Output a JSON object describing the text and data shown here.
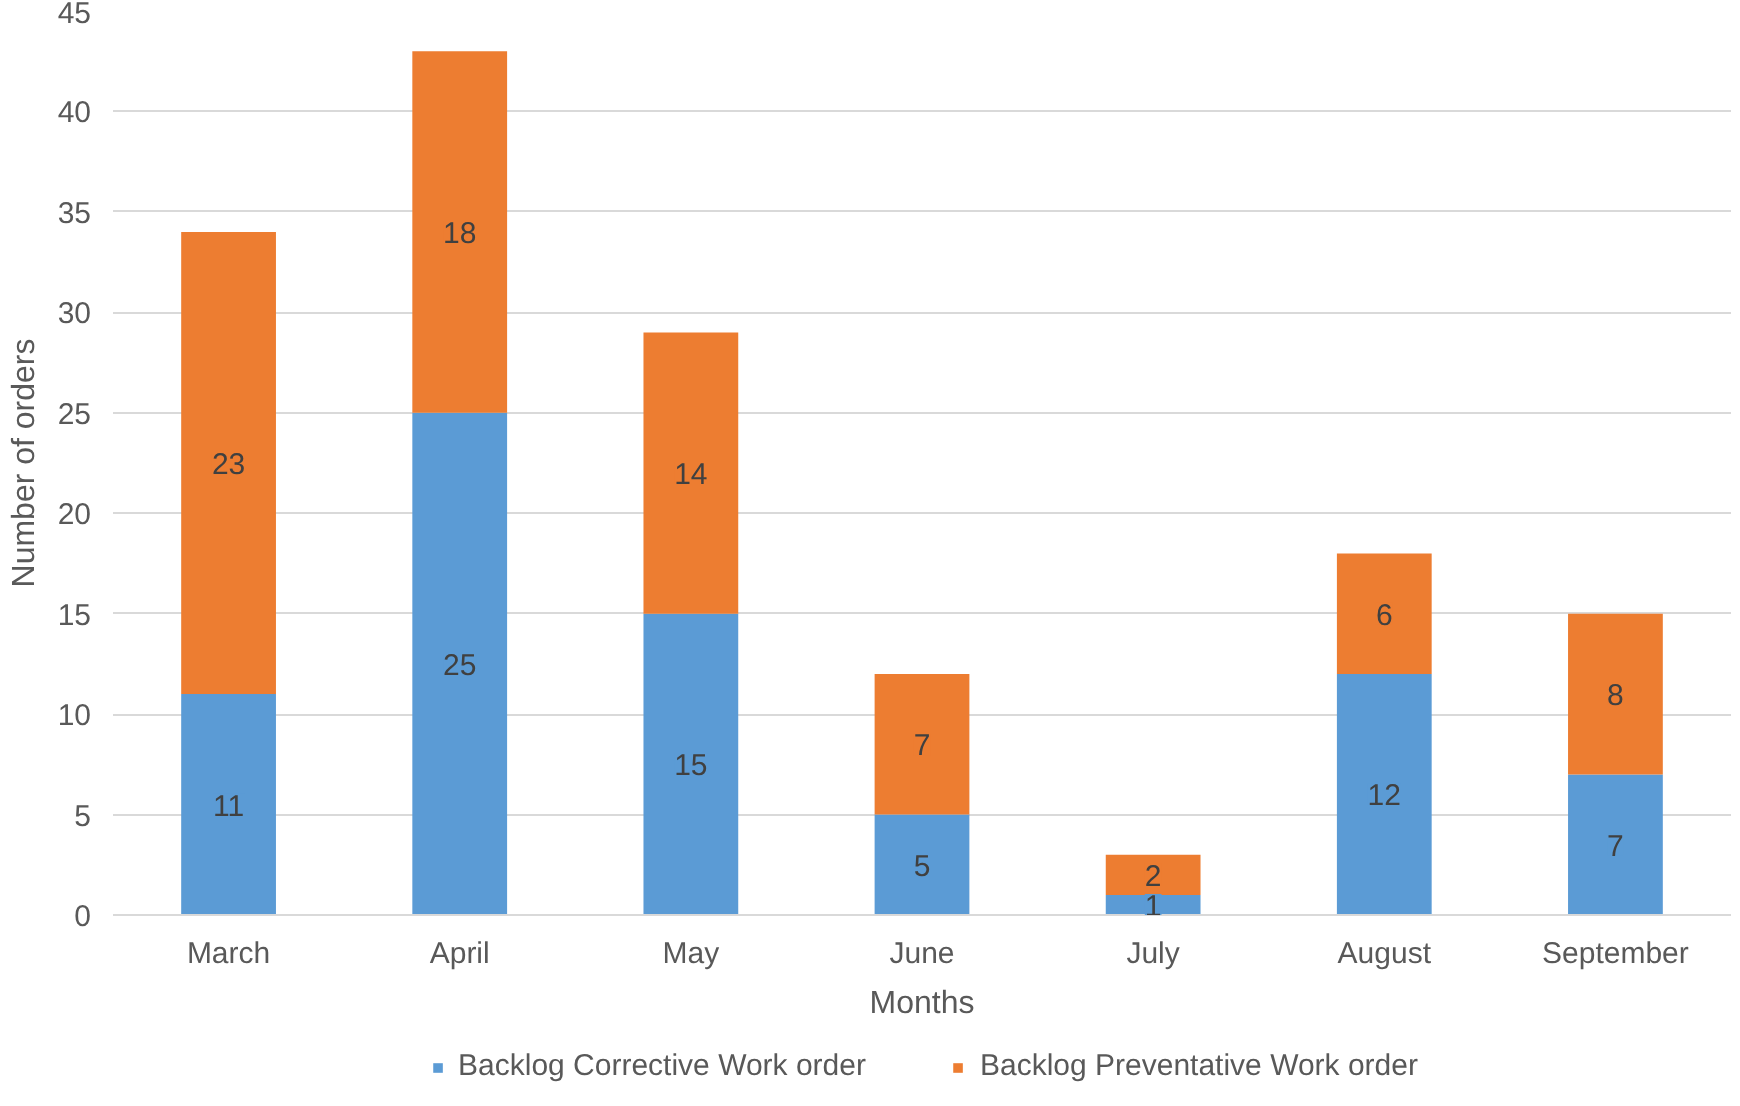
{
  "chart_data": {
    "type": "bar",
    "stacked": true,
    "xlabel": "Months",
    "ylabel": "Number of orders",
    "categories": [
      "March",
      "April",
      "May",
      "June",
      "July",
      "August",
      "September"
    ],
    "series": [
      {
        "name": "Backlog Corrective Work order",
        "color": "#5b9bd5",
        "values": [
          11,
          25,
          15,
          5,
          1,
          12,
          7
        ]
      },
      {
        "name": "Backlog Preventative Work order",
        "color": "#ed7d31",
        "values": [
          23,
          18,
          14,
          7,
          2,
          6,
          8
        ]
      }
    ],
    "ylim": [
      0,
      45
    ],
    "yticks": [
      0,
      5,
      10,
      15,
      20,
      25,
      30,
      35,
      40,
      45
    ],
    "grid": "y",
    "legend": "bottom",
    "data_labels": true
  }
}
